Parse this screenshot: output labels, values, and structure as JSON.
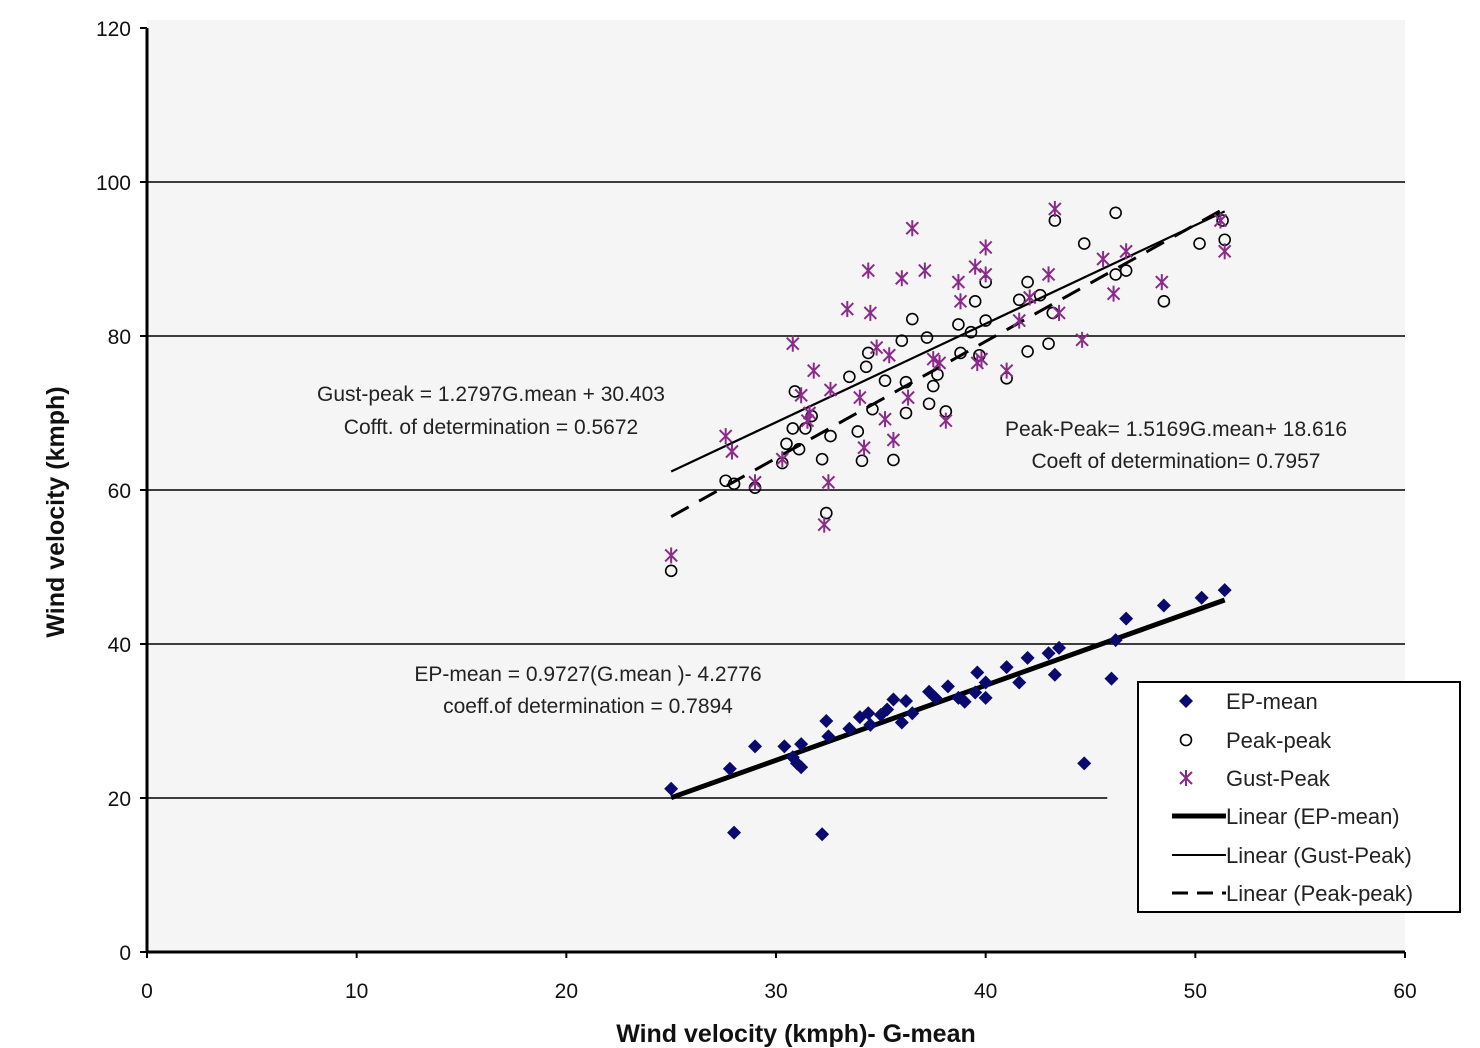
{
  "chart_data": {
    "type": "scatter",
    "xlabel": "Wind velocity (kmph)- G-mean",
    "ylabel": "Wind velocity (kmph)",
    "xlim": [
      0,
      60
    ],
    "ylim": [
      0,
      120
    ],
    "x_ticks": [
      "0",
      "10",
      "20",
      "30",
      "40",
      "50",
      "60"
    ],
    "y_ticks": [
      "0",
      "20",
      "40",
      "60",
      "80",
      "100",
      "120"
    ],
    "grid": "horizontal",
    "legend_position": "bottom-right",
    "colors": {
      "ep_mean": "#0a0a6e",
      "peak_peak": "#000000",
      "gust_peak": "#8a2a8a",
      "background": "#f5f5f5"
    },
    "series": [
      {
        "name": "EP-mean",
        "marker": "diamond",
        "color": "#0a0a6e",
        "points": [
          [
            25,
            21.2
          ],
          [
            27.8,
            23.8
          ],
          [
            28,
            15.5
          ],
          [
            29,
            26.7
          ],
          [
            30.4,
            26.7
          ],
          [
            30.8,
            25.3
          ],
          [
            31,
            24.5
          ],
          [
            31.2,
            27
          ],
          [
            31.2,
            24
          ],
          [
            32.2,
            15.3
          ],
          [
            32.4,
            30
          ],
          [
            32.5,
            28
          ],
          [
            33.5,
            29
          ],
          [
            34,
            30.5
          ],
          [
            34.4,
            31
          ],
          [
            34.5,
            29.5
          ],
          [
            35,
            30.8
          ],
          [
            35.3,
            31.5
          ],
          [
            35.6,
            32.8
          ],
          [
            36,
            29.8
          ],
          [
            36.2,
            32.6
          ],
          [
            36.5,
            31
          ],
          [
            37.3,
            33.8
          ],
          [
            37.6,
            33
          ],
          [
            38.2,
            34.5
          ],
          [
            38.7,
            33
          ],
          [
            39,
            32.5
          ],
          [
            39.5,
            33.7
          ],
          [
            39.6,
            36.3
          ],
          [
            40,
            35
          ],
          [
            40,
            33
          ],
          [
            41,
            37
          ],
          [
            41.6,
            35
          ],
          [
            42,
            38.2
          ],
          [
            43,
            38.8
          ],
          [
            43.3,
            36
          ],
          [
            43.5,
            39.5
          ],
          [
            44.7,
            24.5
          ],
          [
            46,
            35.5
          ],
          [
            46.2,
            40.5
          ],
          [
            46.7,
            43.3
          ],
          [
            48.5,
            45
          ],
          [
            50.3,
            46
          ],
          [
            51.4,
            47
          ]
        ]
      },
      {
        "name": "Peak-peak",
        "marker": "circle",
        "color": "#000000",
        "points": [
          [
            25,
            49.5
          ],
          [
            27.6,
            61.2
          ],
          [
            28,
            60.8
          ],
          [
            29,
            60.3
          ],
          [
            30.3,
            63.5
          ],
          [
            30.5,
            66
          ],
          [
            30.8,
            68
          ],
          [
            30.9,
            72.8
          ],
          [
            31.1,
            65.3
          ],
          [
            31.4,
            68
          ],
          [
            31.7,
            69.6
          ],
          [
            32.2,
            64
          ],
          [
            32.4,
            57
          ],
          [
            32.6,
            67
          ],
          [
            33.5,
            74.7
          ],
          [
            33.9,
            67.6
          ],
          [
            34.1,
            63.8
          ],
          [
            34.3,
            76
          ],
          [
            34.4,
            77.8
          ],
          [
            34.6,
            70.5
          ],
          [
            35.2,
            74.2
          ],
          [
            35.6,
            63.9
          ],
          [
            36,
            79.4
          ],
          [
            36.2,
            70
          ],
          [
            36.2,
            74
          ],
          [
            36.5,
            82.2
          ],
          [
            37.2,
            79.8
          ],
          [
            37.3,
            71.2
          ],
          [
            37.5,
            73.5
          ],
          [
            37.7,
            75
          ],
          [
            38.1,
            70.2
          ],
          [
            38.7,
            81.5
          ],
          [
            38.8,
            77.8
          ],
          [
            39.3,
            80.5
          ],
          [
            39.5,
            84.5
          ],
          [
            39.7,
            77.5
          ],
          [
            40,
            87
          ],
          [
            40,
            82
          ],
          [
            41,
            74.5
          ],
          [
            41.6,
            84.7
          ],
          [
            42,
            87
          ],
          [
            42,
            78
          ],
          [
            42.6,
            85.3
          ],
          [
            43,
            79
          ],
          [
            43.2,
            83
          ],
          [
            43.3,
            95
          ],
          [
            44.7,
            92
          ],
          [
            46.2,
            96
          ],
          [
            46.2,
            88
          ],
          [
            46.7,
            88.5
          ],
          [
            48.5,
            84.5
          ],
          [
            50.2,
            92
          ],
          [
            51.3,
            95
          ],
          [
            51.4,
            92.5
          ]
        ]
      },
      {
        "name": "Gust-Peak",
        "marker": "asterisk",
        "color": "#8a2a8a",
        "points": [
          [
            25,
            51.5
          ],
          [
            27.6,
            67
          ],
          [
            27.9,
            65
          ],
          [
            29,
            61
          ],
          [
            30.3,
            64
          ],
          [
            30.8,
            79
          ],
          [
            31.2,
            72.3
          ],
          [
            31.5,
            69
          ],
          [
            31.6,
            70
          ],
          [
            31.8,
            75.5
          ],
          [
            32.3,
            55.5
          ],
          [
            32.5,
            61
          ],
          [
            32.6,
            73
          ],
          [
            33.4,
            83.5
          ],
          [
            34,
            72
          ],
          [
            34.2,
            65.5
          ],
          [
            34.4,
            88.5
          ],
          [
            34.5,
            83
          ],
          [
            34.8,
            78.5
          ],
          [
            35.2,
            69.2
          ],
          [
            35.4,
            77.5
          ],
          [
            35.6,
            66.5
          ],
          [
            36,
            87.5
          ],
          [
            36.3,
            72
          ],
          [
            36.5,
            94
          ],
          [
            37.1,
            88.5
          ],
          [
            37.5,
            77
          ],
          [
            37.8,
            76.5
          ],
          [
            38.1,
            69
          ],
          [
            38.7,
            87
          ],
          [
            38.8,
            84.5
          ],
          [
            39.5,
            89
          ],
          [
            39.6,
            76.5
          ],
          [
            39.8,
            77
          ],
          [
            40,
            91.5
          ],
          [
            40,
            88
          ],
          [
            41,
            75.5
          ],
          [
            41.6,
            82
          ],
          [
            42.1,
            85
          ],
          [
            43,
            88
          ],
          [
            43.3,
            96.5
          ],
          [
            43.5,
            83
          ],
          [
            44.6,
            79.5
          ],
          [
            45.6,
            90
          ],
          [
            46.1,
            85.5
          ],
          [
            46.7,
            91
          ],
          [
            48.4,
            87
          ],
          [
            51.2,
            95
          ],
          [
            51.4,
            91
          ]
        ]
      }
    ],
    "trendlines": [
      {
        "name": "Linear (EP-mean)",
        "style": "thick-solid",
        "slope": 0.9727,
        "intercept": -4.2776,
        "x_range": [
          25,
          51.4
        ]
      },
      {
        "name": "Linear (Gust-Peak)",
        "style": "thin-solid",
        "slope": 1.2797,
        "intercept": 30.403,
        "x_range": [
          25,
          51.4
        ]
      },
      {
        "name": "Linear (Peak-peak)",
        "style": "dashed",
        "slope": 1.5169,
        "intercept": 18.616,
        "x_range": [
          25,
          51.4
        ]
      }
    ],
    "annotations": [
      {
        "lines": [
          "Gust-peak = 1.2797G.mean + 30.403",
          "Cofft. of determination = 0.5672"
        ]
      },
      {
        "lines": [
          "Peak-Peak= 1.5169G.mean+ 18.616",
          "Coeft of determination= 0.7957"
        ]
      },
      {
        "lines": [
          "EP-mean = 0.9727(G.mean )- 4.2776",
          "coeff.of determination = 0.7894"
        ]
      }
    ],
    "legend": [
      "EP-mean",
      "Peak-peak",
      "Gust-Peak",
      "Linear (EP-mean)",
      "Linear (Gust-Peak)",
      "Linear (Peak-peak)"
    ]
  }
}
